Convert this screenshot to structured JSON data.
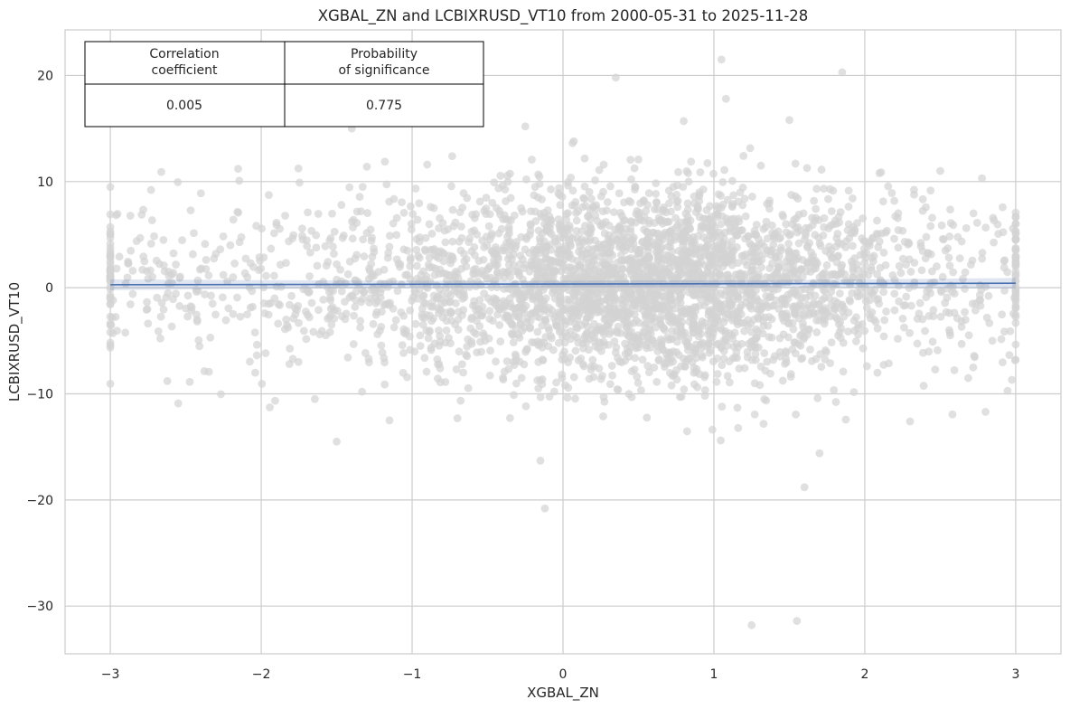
{
  "chart_data": {
    "type": "scatter",
    "title": "XGBAL_ZN and LCBIXRUSD_VT10 from 2000-05-31 to 2025-11-28",
    "xlabel": "XGBAL_ZN",
    "ylabel": "LCBIXRUSD_VT10",
    "xlim": [
      -3.3,
      3.3
    ],
    "ylim": [
      -34.5,
      24.3
    ],
    "x_ticks": [
      -3,
      -2,
      -1,
      0,
      1,
      2,
      3
    ],
    "x_tick_labels": [
      "−3",
      "−2",
      "−1",
      "0",
      "1",
      "2",
      "3"
    ],
    "y_ticks": [
      -30,
      -20,
      -10,
      0,
      10,
      20
    ],
    "y_tick_labels": [
      "−30",
      "−20",
      "−10",
      "0",
      "10",
      "20"
    ],
    "grid": true,
    "point_color": "#d3d3d3",
    "regression_color": "#4c72b0",
    "regression_line": {
      "x": [
        -3,
        3
      ],
      "y": [
        0.28,
        0.42
      ]
    },
    "notable_points": [
      {
        "x": 1.05,
        "y": 21.5
      },
      {
        "x": 1.85,
        "y": 20.3
      },
      {
        "x": 0.35,
        "y": 19.8
      },
      {
        "x": 1.08,
        "y": 17.8
      },
      {
        "x": -1.4,
        "y": 15.0
      },
      {
        "x": -0.25,
        "y": 15.2
      },
      {
        "x": 0.8,
        "y": 15.7
      },
      {
        "x": 1.5,
        "y": 15.8
      },
      {
        "x": -0.9,
        "y": 11.6
      },
      {
        "x": -1.3,
        "y": 11.4
      },
      {
        "x": 2.5,
        "y": 11.0
      },
      {
        "x": -2.4,
        "y": 8.9
      },
      {
        "x": -0.15,
        "y": -16.3
      },
      {
        "x": -0.12,
        "y": -20.8
      },
      {
        "x": 1.6,
        "y": -18.8
      },
      {
        "x": 1.7,
        "y": -15.6
      },
      {
        "x": -1.5,
        "y": -14.5
      },
      {
        "x": 2.3,
        "y": -12.6
      },
      {
        "x": 1.25,
        "y": -31.8
      },
      {
        "x": 1.55,
        "y": -31.4
      },
      {
        "x": -2.55,
        "y": -10.9
      },
      {
        "x": 2.8,
        "y": -11.7
      },
      {
        "x": -0.7,
        "y": -12.3
      },
      {
        "x": -1.15,
        "y": -12.5
      }
    ]
  },
  "stats_table": {
    "headers": [
      "Correlation\ncoefficient",
      "Probability\nof significance"
    ],
    "values": [
      "0.005",
      "0.775"
    ]
  }
}
